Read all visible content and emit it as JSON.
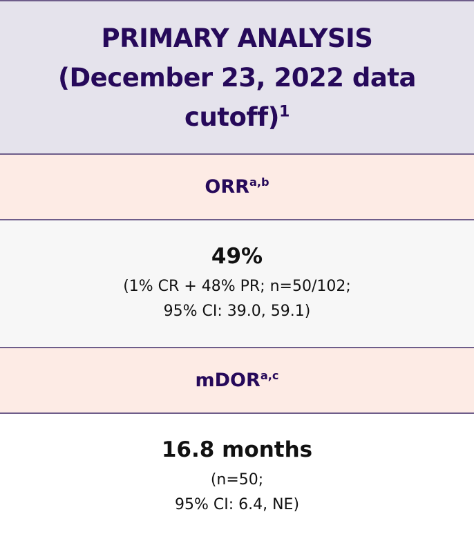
{
  "header": {
    "title": "PRIMARY ANALYSIS (December 23, 2022 data cutoff)",
    "title_sup": "1"
  },
  "orr": {
    "label": "ORR",
    "sup": "a,b",
    "value": "49%",
    "detail_line1": "(1% CR + 48% PR; n=50/102;",
    "detail_line2": "95% CI: 39.0, 59.1)"
  },
  "mdor": {
    "label": "mDOR",
    "sup": "a,c",
    "value": "16.8 months",
    "detail_line1": "(n=50;",
    "detail_line2": "95% CI: 6.4, NE)"
  },
  "colors": {
    "text_primary": "#26095a",
    "header_bg": "#e5e3ec",
    "subheader_bg": "#fdebe5",
    "border": "#6e5d8a"
  }
}
